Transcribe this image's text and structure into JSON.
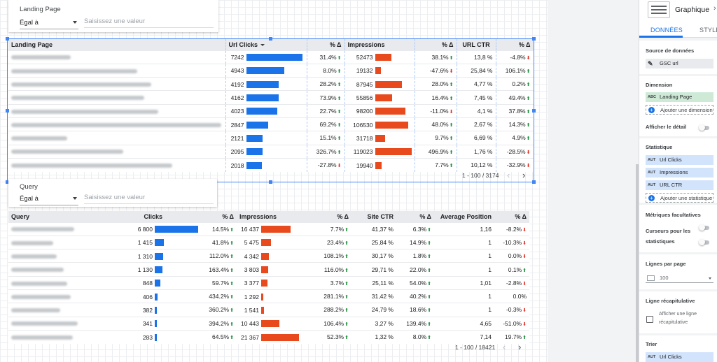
{
  "filter1": {
    "title": "Landing Page",
    "operator": "Égal à",
    "placeholder": "Saisissez une valeur"
  },
  "filter2": {
    "title": "Query",
    "operator": "Égal à",
    "placeholder": "Saisissez une valeur"
  },
  "table1": {
    "headers": {
      "landing_page": "Landing Page",
      "url_clicks": "Url Clicks",
      "delta1": "% Δ",
      "impressions": "Impressions",
      "delta2": "% Δ",
      "url_ctr": "URL CTR",
      "delta3": "% Δ"
    },
    "rows": [
      {
        "clicks": "7242",
        "clicks_frac": 1.0,
        "d1": "31.4%",
        "d1_dir": "up",
        "impr": "52473",
        "impr_frac": 0.44,
        "d2": "38.1%",
        "d2_dir": "up",
        "ctr": "13,8 %",
        "d3": "-4.8%",
        "d3_dir": "down"
      },
      {
        "clicks": "4943",
        "clicks_frac": 0.68,
        "d1": "8.0%",
        "d1_dir": "up",
        "impr": "19132",
        "impr_frac": 0.16,
        "d2": "-47.6%",
        "d2_dir": "down",
        "ctr": "25,84 %",
        "d3": "106.1%",
        "d3_dir": "up"
      },
      {
        "clicks": "4192",
        "clicks_frac": 0.58,
        "d1": "28.2%",
        "d1_dir": "up",
        "impr": "87945",
        "impr_frac": 0.74,
        "d2": "28.0%",
        "d2_dir": "up",
        "ctr": "4,77 %",
        "d3": "0.2%",
        "d3_dir": "up"
      },
      {
        "clicks": "4162",
        "clicks_frac": 0.575,
        "d1": "73.9%",
        "d1_dir": "up",
        "impr": "55856",
        "impr_frac": 0.47,
        "d2": "16.4%",
        "d2_dir": "up",
        "ctr": "7,45 %",
        "d3": "49.4%",
        "d3_dir": "up"
      },
      {
        "clicks": "4023",
        "clicks_frac": 0.555,
        "d1": "22.7%",
        "d1_dir": "up",
        "impr": "98200",
        "impr_frac": 0.83,
        "d2": "-11.0%",
        "d2_dir": "down",
        "ctr": "4,1 %",
        "d3": "37.8%",
        "d3_dir": "up"
      },
      {
        "clicks": "2847",
        "clicks_frac": 0.39,
        "d1": "69.2%",
        "d1_dir": "up",
        "impr": "106530",
        "impr_frac": 0.9,
        "d2": "48.0%",
        "d2_dir": "up",
        "ctr": "2,67 %",
        "d3": "14.3%",
        "d3_dir": "up"
      },
      {
        "clicks": "2121",
        "clicks_frac": 0.29,
        "d1": "15.1%",
        "d1_dir": "up",
        "impr": "31718",
        "impr_frac": 0.27,
        "d2": "9.7%",
        "d2_dir": "up",
        "ctr": "6,69 %",
        "d3": "4.9%",
        "d3_dir": "up"
      },
      {
        "clicks": "2095",
        "clicks_frac": 0.29,
        "d1": "326.7%",
        "d1_dir": "up",
        "impr": "119023",
        "impr_frac": 1.0,
        "d2": "496.9%",
        "d2_dir": "up",
        "ctr": "1,76 %",
        "d3": "-28.5%",
        "d3_dir": "down"
      },
      {
        "clicks": "2018",
        "clicks_frac": 0.28,
        "d1": "-27.8%",
        "d1_dir": "down",
        "impr": "19940",
        "impr_frac": 0.17,
        "d2": "7.7%",
        "d2_dir": "up",
        "ctr": "10,12 %",
        "d3": "-32.9%",
        "d3_dir": "down"
      }
    ],
    "pagination": "1 - 100 / 3174"
  },
  "table2": {
    "headers": {
      "query": "Query",
      "clicks": "Clicks",
      "delta1": "% Δ",
      "impressions": "Impressions",
      "delta2": "% Δ",
      "site_ctr": "Site CTR",
      "delta3": "% Δ",
      "avg_position": "Average Position",
      "delta4": "% Δ"
    },
    "rows": [
      {
        "clicks": "6 800",
        "clicks_frac": 1.0,
        "d1": "14.5%",
        "d1_dir": "up",
        "impr": "16 437",
        "impr_frac": 0.77,
        "d2": "7.7%",
        "d2_dir": "up",
        "ctr": "41,37 %",
        "d3": "6.3%",
        "d3_dir": "up",
        "pos": "1,16",
        "d4": "-8.2%",
        "d4_dir": "down"
      },
      {
        "clicks": "1 415",
        "clicks_frac": 0.21,
        "d1": "41.8%",
        "d1_dir": "up",
        "impr": "5 475",
        "impr_frac": 0.26,
        "d2": "23.4%",
        "d2_dir": "up",
        "ctr": "25,84 %",
        "d3": "14.9%",
        "d3_dir": "up",
        "pos": "1",
        "d4": "-10.3%",
        "d4_dir": "down"
      },
      {
        "clicks": "1 310",
        "clicks_frac": 0.19,
        "d1": "112.0%",
        "d1_dir": "up",
        "impr": "4 342",
        "impr_frac": 0.2,
        "d2": "108.1%",
        "d2_dir": "up",
        "ctr": "30,17 %",
        "d3": "1.8%",
        "d3_dir": "up",
        "pos": "1",
        "d4": "0.0%",
        "d4_dir": "down"
      },
      {
        "clicks": "1 130",
        "clicks_frac": 0.17,
        "d1": "163.4%",
        "d1_dir": "up",
        "impr": "3 803",
        "impr_frac": 0.18,
        "d2": "116.0%",
        "d2_dir": "up",
        "ctr": "29,71 %",
        "d3": "22.0%",
        "d3_dir": "up",
        "pos": "1",
        "d4": "0.1%",
        "d4_dir": "up"
      },
      {
        "clicks": "848",
        "clicks_frac": 0.125,
        "d1": "59.7%",
        "d1_dir": "up",
        "impr": "3 377",
        "impr_frac": 0.16,
        "d2": "3.7%",
        "d2_dir": "up",
        "ctr": "25,11 %",
        "d3": "54.0%",
        "d3_dir": "up",
        "pos": "1,01",
        "d4": "-2.8%",
        "d4_dir": "down"
      },
      {
        "clicks": "406",
        "clicks_frac": 0.06,
        "d1": "434.2%",
        "d1_dir": "up",
        "impr": "1 292",
        "impr_frac": 0.06,
        "d2": "281.1%",
        "d2_dir": "up",
        "ctr": "31,42 %",
        "d3": "40.2%",
        "d3_dir": "up",
        "pos": "1",
        "d4": "0.0%",
        "d4_dir": "none"
      },
      {
        "clicks": "382",
        "clicks_frac": 0.056,
        "d1": "360.2%",
        "d1_dir": "up",
        "impr": "1 541",
        "impr_frac": 0.072,
        "d2": "288.2%",
        "d2_dir": "up",
        "ctr": "24,79 %",
        "d3": "18.6%",
        "d3_dir": "up",
        "pos": "1",
        "d4": "-0.3%",
        "d4_dir": "down"
      },
      {
        "clicks": "341",
        "clicks_frac": 0.05,
        "d1": "394.2%",
        "d1_dir": "up",
        "impr": "10 443",
        "impr_frac": 0.49,
        "d2": "106.4%",
        "d2_dir": "up",
        "ctr": "3,27 %",
        "d3": "139.4%",
        "d3_dir": "up",
        "pos": "4,65",
        "d4": "-51.0%",
        "d4_dir": "down"
      },
      {
        "clicks": "283",
        "clicks_frac": 0.042,
        "d1": "64.5%",
        "d1_dir": "up",
        "impr": "21 367",
        "impr_frac": 1.0,
        "d2": "52.3%",
        "d2_dir": "up",
        "ctr": "1,32 %",
        "d3": "8.0%",
        "d3_dir": "up",
        "pos": "7,14",
        "d4": "19.7%",
        "d4_dir": "up"
      }
    ],
    "pagination": "1 - 100 / 18421"
  },
  "panel": {
    "title": "Graphique",
    "tab_data": "DONNÉES",
    "tab_style": "STYLE",
    "source_label": "Source de données",
    "source_value": "GSC url",
    "dimension_label": "Dimension",
    "dimension_type": "ABC",
    "dimension_value": "Landing Page",
    "add_dimension": "Ajouter une dimension",
    "show_detail": "Afficher le détail",
    "metric_label": "Statistique",
    "metric_type": "AUT",
    "metrics": [
      "Url Clicks",
      "Impressions",
      "URL CTR"
    ],
    "add_metric": "Ajouter une statistique",
    "optional_metrics": "Métriques facultatives",
    "metric_sliders_1": "Curseurs pour les",
    "metric_sliders_2": "statistiques",
    "rows_per_page": "Lignes par page",
    "rows_value": "100",
    "summary_label": "Ligne récapitulative",
    "summary_check_1": "Afficher une ligne",
    "summary_check_2": "récapitulative",
    "sort_label": "Trier",
    "sort_value": "Url Clicks"
  },
  "colors": {
    "bar_blue": "#1a73e8",
    "bar_orange": "#e8491d",
    "selection": "#4285f4"
  }
}
